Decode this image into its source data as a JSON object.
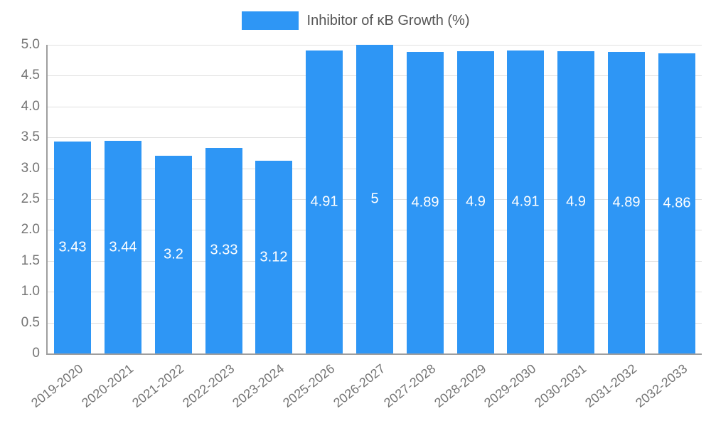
{
  "chart_data": {
    "type": "bar",
    "title": "Inhibitor of κB Growth (%)",
    "legend": {
      "position": "top",
      "label": "Inhibitor of κB Growth (%)"
    },
    "categories": [
      "2019-2020",
      "2020-2021",
      "2021-2022",
      "2022-2023",
      "2023-2024",
      "2025-2026",
      "2026-2027",
      "2027-2028",
      "2028-2029",
      "2029-2030",
      "2030-2031",
      "2031-2032",
      "2032-2033"
    ],
    "values": [
      3.43,
      3.44,
      3.2,
      3.33,
      3.12,
      4.91,
      5,
      4.89,
      4.9,
      4.91,
      4.9,
      4.89,
      4.86
    ],
    "xlabel": "",
    "ylabel": "",
    "ylim": [
      0,
      5
    ],
    "ytick_labels": [
      "0",
      "0.5",
      "1.0",
      "1.5",
      "2.0",
      "2.5",
      "3.0",
      "3.5",
      "4.0",
      "4.5",
      "5.0"
    ],
    "grid": true,
    "bar_color": "#2E96F5",
    "value_label_color": "#ffffff",
    "axis_text_color": "#757575"
  }
}
